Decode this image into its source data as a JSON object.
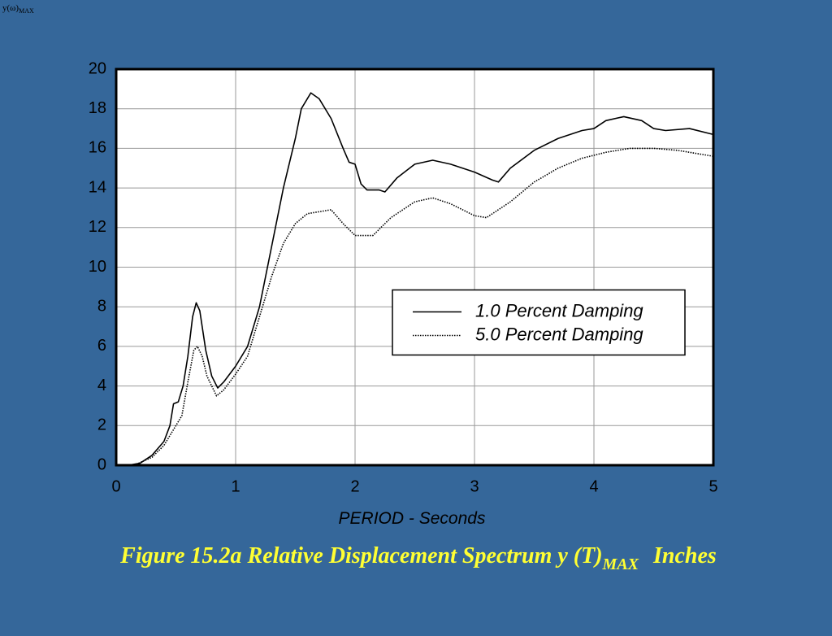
{
  "chart_data": {
    "type": "line",
    "corner_label": {
      "main": "y(ω)",
      "subscript": "MAX"
    },
    "title": {
      "main": "Figure 15.2a  Relative Displacement Spectrum  y (T)",
      "subscript": "MAX",
      "unit": "Inches"
    },
    "x_label": "PERIOD - Seconds",
    "xlim": [
      0,
      5
    ],
    "xticks": [
      0,
      1,
      2,
      3,
      4,
      5
    ],
    "ylim": [
      0,
      20
    ],
    "yticks": [
      0,
      2,
      4,
      6,
      8,
      10,
      12,
      14,
      16,
      18,
      20
    ],
    "grid": true,
    "legend": "right",
    "series": [
      {
        "name": "1.0 Percent Damping",
        "color": "#000000",
        "dash": "solid",
        "x": [
          0.1,
          0.2,
          0.3,
          0.4,
          0.45,
          0.48,
          0.52,
          0.56,
          0.6,
          0.64,
          0.67,
          0.7,
          0.75,
          0.8,
          0.85,
          0.9,
          1.0,
          1.1,
          1.2,
          1.3,
          1.4,
          1.5,
          1.55,
          1.63,
          1.7,
          1.8,
          1.9,
          1.95,
          2.0,
          2.05,
          2.1,
          2.2,
          2.25,
          2.35,
          2.5,
          2.65,
          2.8,
          3.0,
          3.15,
          3.2,
          3.3,
          3.5,
          3.7,
          3.9,
          4.0,
          4.1,
          4.25,
          4.4,
          4.5,
          4.6,
          4.8,
          5.0
        ],
        "values": [
          0,
          0.1,
          0.5,
          1.2,
          2,
          3.1,
          3.2,
          4,
          5.5,
          7.5,
          8.2,
          7.8,
          5.8,
          4.5,
          3.9,
          4.2,
          5.0,
          6.0,
          8.0,
          11,
          14,
          16.5,
          18,
          18.8,
          18.5,
          17.5,
          16,
          15.3,
          15.2,
          14.2,
          13.9,
          13.9,
          13.8,
          14.5,
          15.2,
          15.4,
          15.2,
          14.8,
          14.4,
          14.3,
          15,
          15.9,
          16.5,
          16.9,
          17.0,
          17.4,
          17.6,
          17.4,
          17.0,
          16.9,
          17.0,
          16.7
        ]
      },
      {
        "name": "5.0 Percent Damping",
        "color": "#000000",
        "dash": "dotted",
        "x": [
          0.15,
          0.3,
          0.4,
          0.5,
          0.55,
          0.6,
          0.65,
          0.68,
          0.72,
          0.76,
          0.84,
          0.9,
          1.0,
          1.1,
          1.2,
          1.3,
          1.4,
          1.5,
          1.6,
          1.7,
          1.8,
          1.9,
          2.0,
          2.1,
          2.15,
          2.3,
          2.5,
          2.65,
          2.8,
          3.0,
          3.1,
          3.3,
          3.5,
          3.7,
          3.9,
          4.1,
          4.3,
          4.5,
          4.7,
          5.0
        ],
        "values": [
          0,
          0.4,
          1.0,
          2.0,
          2.5,
          4.2,
          5.8,
          6.0,
          5.5,
          4.5,
          3.5,
          3.8,
          4.6,
          5.5,
          7.5,
          9.5,
          11.2,
          12.2,
          12.7,
          12.8,
          12.9,
          12.2,
          11.6,
          11.6,
          11.6,
          12.5,
          13.3,
          13.5,
          13.2,
          12.6,
          12.5,
          13.3,
          14.3,
          15.0,
          15.5,
          15.8,
          16.0,
          16.0,
          15.9,
          15.6
        ]
      }
    ]
  }
}
